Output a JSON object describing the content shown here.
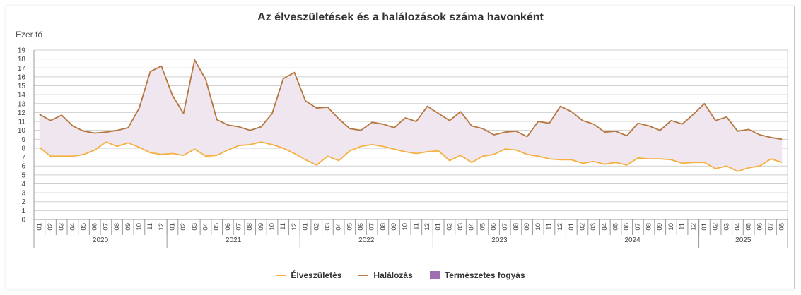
{
  "chart_data": {
    "type": "line",
    "title": "Az élveszületések és a halálozások száma havonként",
    "ylabel": "Ezer fő",
    "ylim": [
      0,
      19
    ],
    "yticks": [
      0,
      1,
      2,
      3,
      4,
      5,
      6,
      7,
      8,
      9,
      10,
      11,
      12,
      13,
      14,
      15,
      16,
      17,
      18,
      19
    ],
    "years": [
      "2020",
      "2021",
      "2022",
      "2023",
      "2024",
      "2025"
    ],
    "months": [
      "01",
      "02",
      "03",
      "04",
      "05",
      "06",
      "07",
      "08",
      "09",
      "10",
      "11",
      "12"
    ],
    "months_per_year": [
      12,
      12,
      12,
      12,
      12,
      8
    ],
    "grid": true,
    "legend_position": "bottom",
    "series": [
      {
        "name": "Élveszületés",
        "color": "#f5b041",
        "values": [
          8.1,
          7.1,
          7.1,
          7.1,
          7.3,
          7.8,
          8.7,
          8.2,
          8.6,
          8.1,
          7.5,
          7.3,
          7.4,
          7.2,
          7.9,
          7.1,
          7.2,
          7.8,
          8.3,
          8.4,
          8.7,
          8.4,
          8.0,
          7.4,
          6.7,
          6.1,
          7.1,
          6.6,
          7.7,
          8.2,
          8.4,
          8.2,
          7.9,
          7.6,
          7.4,
          7.6,
          7.7,
          6.6,
          7.2,
          6.4,
          7.1,
          7.3,
          7.9,
          7.8,
          7.3,
          7.1,
          6.8,
          6.7,
          6.7,
          6.3,
          6.5,
          6.2,
          6.4,
          6.1,
          6.9,
          6.8,
          6.8,
          6.7,
          6.3,
          6.4,
          6.4,
          5.7,
          6.0,
          5.4,
          5.8,
          6.0,
          6.8,
          6.4
        ]
      },
      {
        "name": "Halálozás",
        "color": "#b5773f",
        "values": [
          11.8,
          11.1,
          11.7,
          10.5,
          9.9,
          9.7,
          9.8,
          10.0,
          10.3,
          12.5,
          16.6,
          17.2,
          13.9,
          11.9,
          17.9,
          15.7,
          11.2,
          10.6,
          10.4,
          10.0,
          10.4,
          11.9,
          15.8,
          16.5,
          13.3,
          12.5,
          12.6,
          11.3,
          10.2,
          10.0,
          10.9,
          10.7,
          10.3,
          11.4,
          11.0,
          12.7,
          11.9,
          11.1,
          12.1,
          10.5,
          10.2,
          9.5,
          9.8,
          9.9,
          9.3,
          11.0,
          10.8,
          12.7,
          12.1,
          11.1,
          10.7,
          9.8,
          9.9,
          9.4,
          10.8,
          10.5,
          10.0,
          11.1,
          10.7,
          11.8,
          13.0,
          11.1,
          11.5,
          9.9,
          10.1,
          9.5,
          9.2,
          9.0
        ]
      }
    ],
    "area": {
      "name": "Természetes fogyás",
      "color": "#a16eb1",
      "fill": "#f0e6f0"
    }
  }
}
